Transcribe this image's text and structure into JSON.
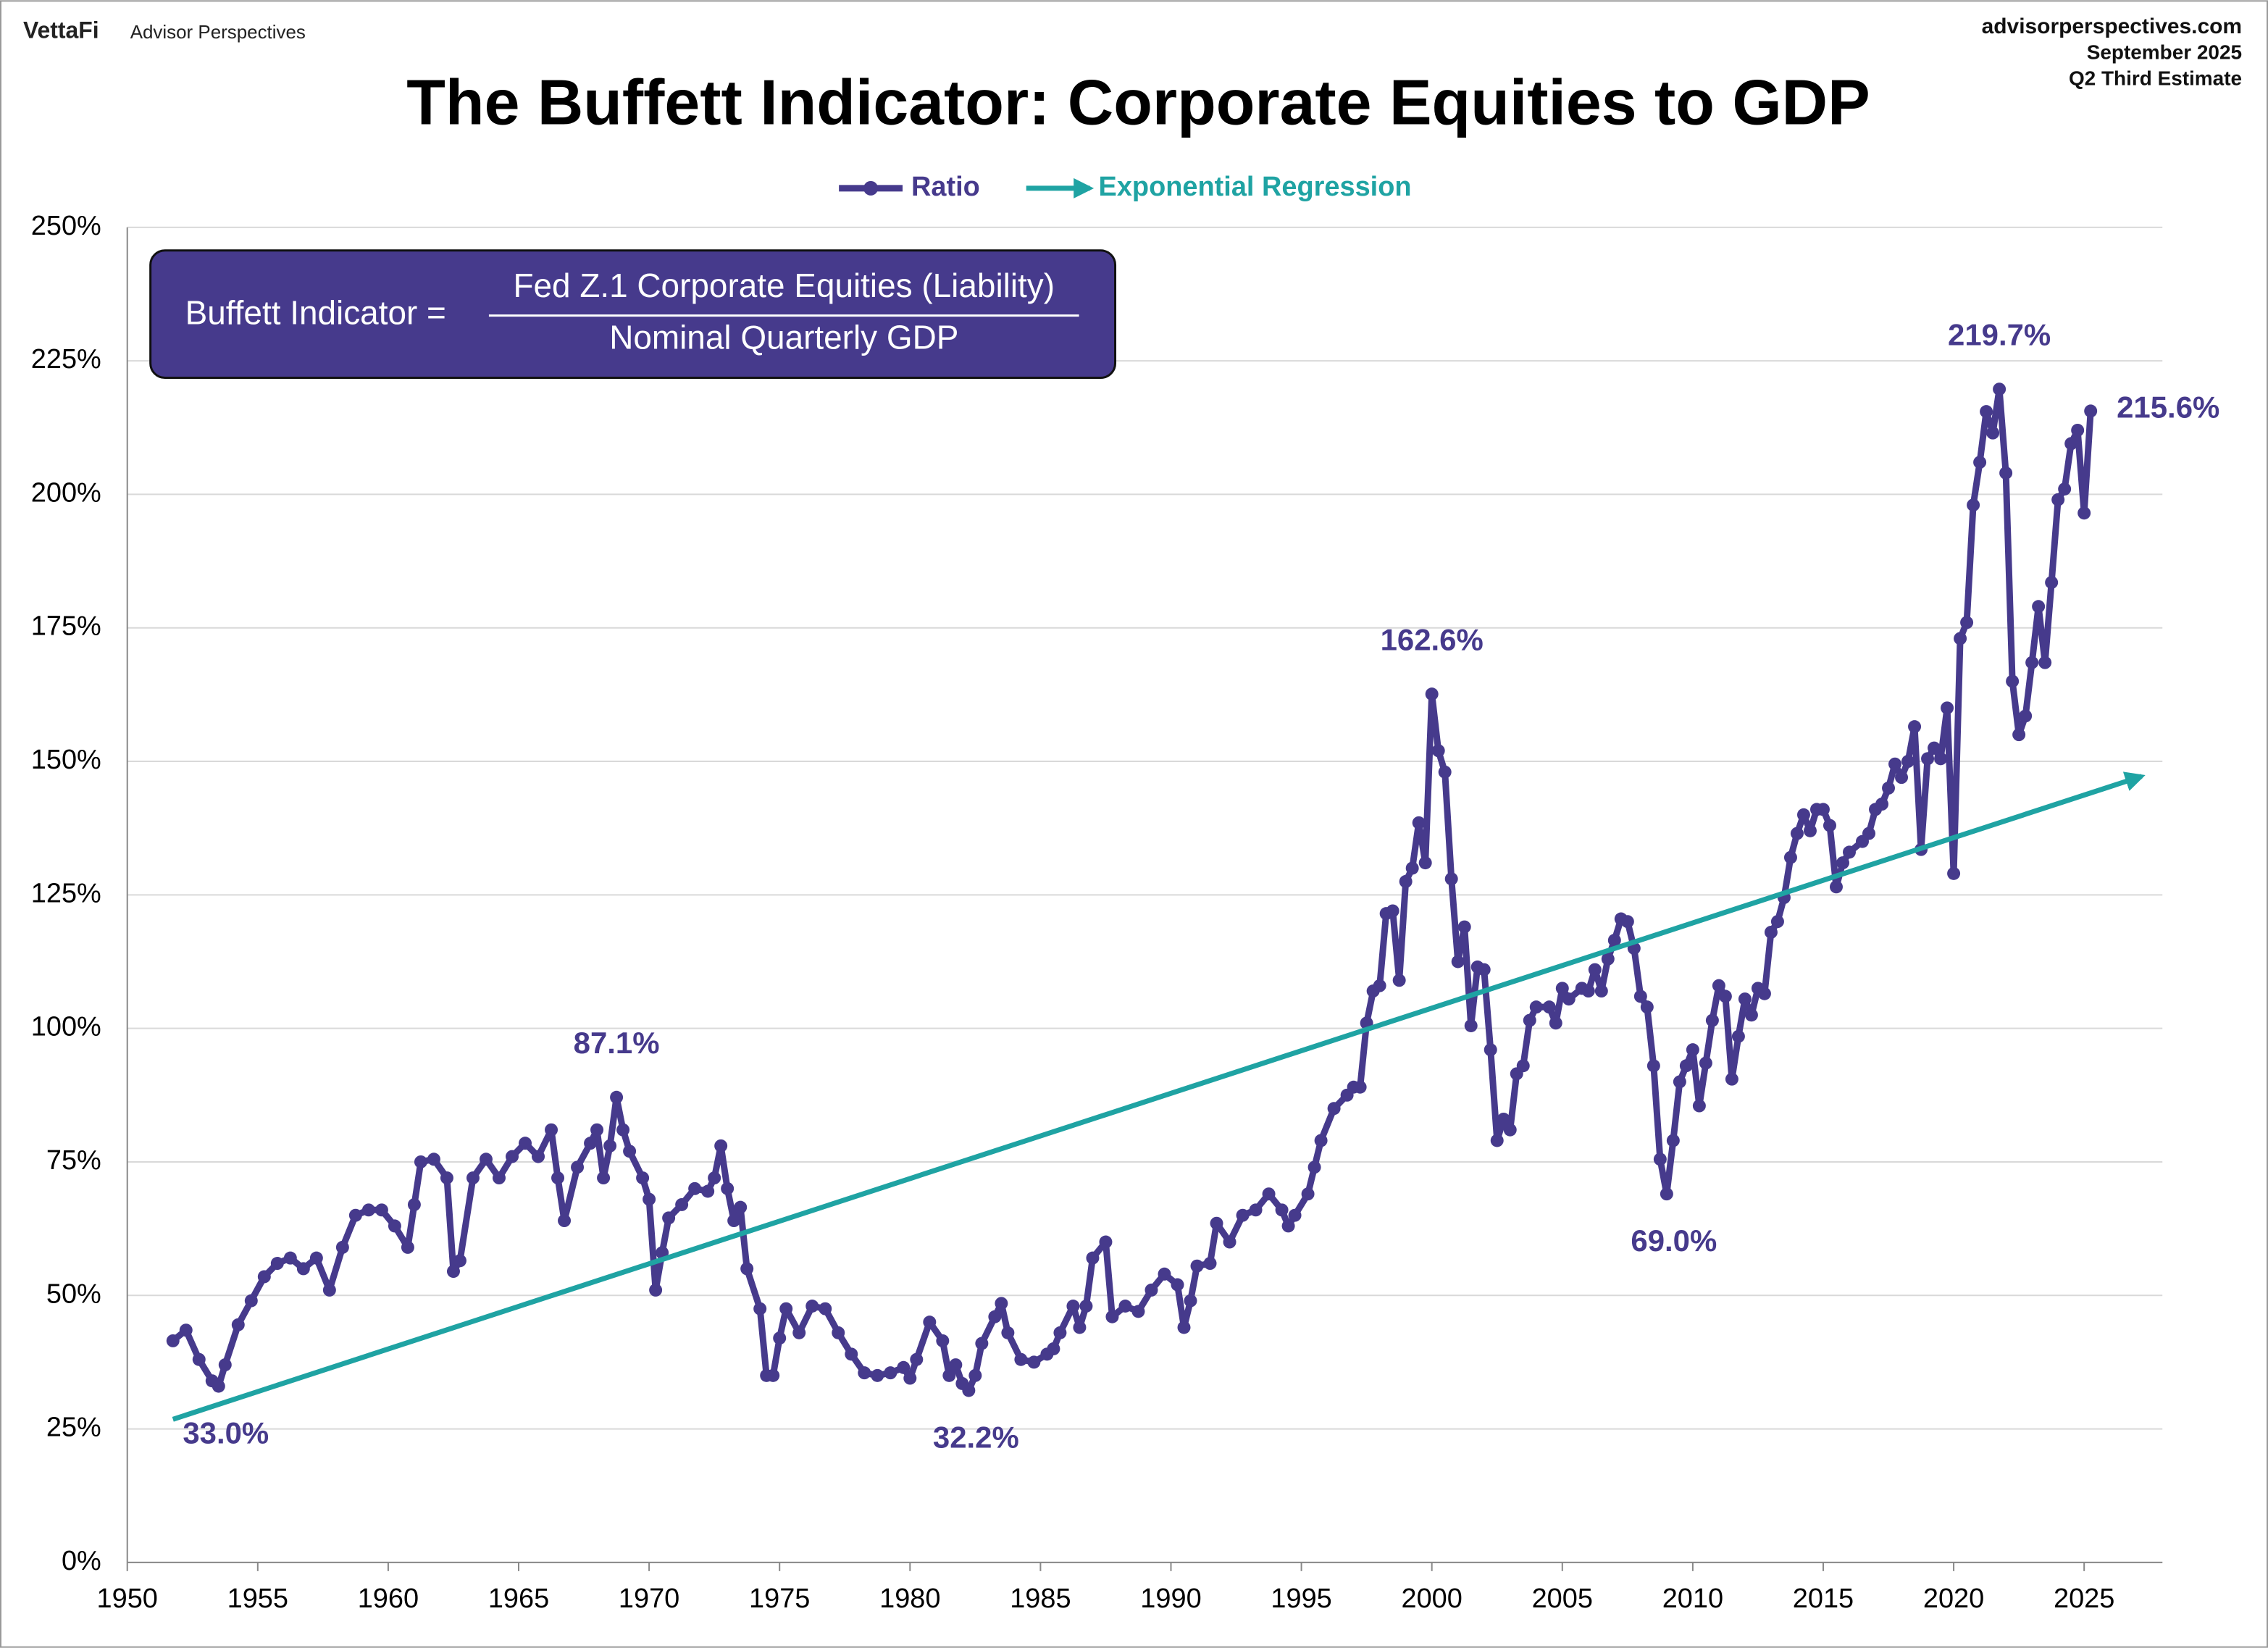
{
  "header": {
    "brand": "VettaFi",
    "brand_sub": "Advisor Perspectives",
    "site": "advisorperspectives.com",
    "date": "September 2025",
    "estimate": "Q2 Third Estimate"
  },
  "formula": {
    "lhs": "Buffett Indicator =",
    "numerator": "Fed Z.1 Corporate Equities (Liability)",
    "denominator": "Nominal Quarterly GDP"
  },
  "chart_data": {
    "type": "line",
    "title": "The Buffett Indicator: Corporate Equities to GDP",
    "xlim": [
      1950,
      2028
    ],
    "xticks": [
      1950,
      1955,
      1960,
      1965,
      1970,
      1975,
      1980,
      1985,
      1990,
      1995,
      2000,
      2005,
      2010,
      2015,
      2020,
      2025
    ],
    "ylim": [
      0,
      250
    ],
    "yticks": [
      {
        "value": 0,
        "label": "0%"
      },
      {
        "value": 25,
        "label": "25%"
      },
      {
        "value": 50,
        "label": "50%"
      },
      {
        "value": 75,
        "label": "75%"
      },
      {
        "value": 100,
        "label": "100%"
      },
      {
        "value": 125,
        "label": "125%"
      },
      {
        "value": 150,
        "label": "150%"
      },
      {
        "value": 175,
        "label": "175%"
      },
      {
        "value": 200,
        "label": "200%"
      },
      {
        "value": 225,
        "label": "225%"
      },
      {
        "value": 250,
        "label": "250%"
      }
    ],
    "grid": true,
    "legend": "top",
    "series": [
      {
        "name": "Ratio",
        "color": "#463a8c",
        "markers": true,
        "x": [
          1951.75,
          1952.25,
          1952.75,
          1953.25,
          1953.5,
          1953.75,
          1954.25,
          1954.75,
          1955.25,
          1955.75,
          1956.25,
          1956.75,
          1957.25,
          1957.75,
          1958.25,
          1958.75,
          1959.25,
          1959.75,
          1960.25,
          1960.75,
          1961.0,
          1961.25,
          1961.75,
          1962.25,
          1962.5,
          1962.75,
          1963.25,
          1963.75,
          1964.25,
          1964.75,
          1965.25,
          1965.75,
          1966.25,
          1966.5,
          1966.75,
          1967.25,
          1967.75,
          1968.0,
          1968.25,
          1968.5,
          1968.75,
          1969.0,
          1969.25,
          1969.75,
          1970.0,
          1970.25,
          1970.5,
          1970.75,
          1971.25,
          1971.75,
          1972.25,
          1972.5,
          1972.75,
          1973.0,
          1973.25,
          1973.5,
          1973.75,
          1974.25,
          1974.5,
          1974.75,
          1975.0,
          1975.25,
          1975.75,
          1976.25,
          1976.75,
          1977.25,
          1977.75,
          1978.25,
          1978.75,
          1979.25,
          1979.75,
          1980.0,
          1980.25,
          1980.75,
          1981.25,
          1981.5,
          1981.75,
          1982.0,
          1982.25,
          1982.5,
          1982.75,
          1983.25,
          1983.5,
          1983.75,
          1984.25,
          1984.75,
          1985.25,
          1985.5,
          1985.75,
          1986.25,
          1986.5,
          1986.75,
          1987.0,
          1987.5,
          1987.75,
          1988.25,
          1988.75,
          1989.25,
          1989.75,
          1990.25,
          1990.5,
          1990.75,
          1991.0,
          1991.5,
          1991.75,
          1992.25,
          1992.75,
          1993.25,
          1993.75,
          1994.25,
          1994.5,
          1994.75,
          1995.25,
          1995.5,
          1995.75,
          1996.25,
          1996.75,
          1997.0,
          1997.25,
          1997.5,
          1997.75,
          1998.0,
          1998.25,
          1998.5,
          1998.75,
          1999.0,
          1999.25,
          1999.5,
          1999.75,
          2000.0,
          2000.25,
          2000.5,
          2000.75,
          2001.0,
          2001.25,
          2001.5,
          2001.75,
          2002.0,
          2002.25,
          2002.5,
          2002.75,
          2003.0,
          2003.25,
          2003.5,
          2003.75,
          2004.0,
          2004.5,
          2004.75,
          2005.0,
          2005.25,
          2005.75,
          2006.0,
          2006.25,
          2006.5,
          2006.75,
          2007.0,
          2007.25,
          2007.5,
          2007.75,
          2008.0,
          2008.25,
          2008.5,
          2008.75,
          2009.0,
          2009.25,
          2009.5,
          2009.75,
          2010.0,
          2010.25,
          2010.5,
          2010.75,
          2011.0,
          2011.25,
          2011.5,
          2011.75,
          2012.0,
          2012.25,
          2012.5,
          2012.75,
          2013.0,
          2013.25,
          2013.5,
          2013.75,
          2014.0,
          2014.25,
          2014.5,
          2014.75,
          2015.0,
          2015.25,
          2015.5,
          2015.75,
          2016.0,
          2016.5,
          2016.75,
          2017.0,
          2017.25,
          2017.5,
          2017.75,
          2018.0,
          2018.25,
          2018.5,
          2018.75,
          2019.0,
          2019.25,
          2019.5,
          2019.75,
          2020.0,
          2020.25,
          2020.5,
          2020.75,
          2021.0,
          2021.25,
          2021.5,
          2021.75,
          2022.0,
          2022.25,
          2022.5,
          2022.75,
          2023.0,
          2023.25,
          2023.5,
          2023.75,
          2024.0,
          2024.25,
          2024.5,
          2024.75,
          2025.0,
          2025.25
        ],
        "values": [
          41.5,
          43.5,
          38,
          34,
          33.0,
          37,
          44.5,
          49,
          53.5,
          56,
          57,
          55,
          57,
          51,
          59,
          65,
          66,
          66,
          63,
          59,
          67,
          75,
          75.5,
          72,
          54.5,
          56.5,
          72,
          75.5,
          72,
          76,
          78.5,
          76,
          81,
          72,
          64,
          74,
          78.5,
          81,
          72,
          78,
          87.1,
          81,
          77,
          72,
          68,
          51,
          58,
          64.5,
          67,
          70,
          69.5,
          72,
          78,
          70,
          64,
          66.5,
          55,
          47.5,
          35,
          35,
          42,
          47.5,
          43,
          48,
          47.5,
          43,
          39,
          35.5,
          35,
          35.5,
          36.5,
          34.5,
          38,
          45,
          41.5,
          35,
          37,
          33.5,
          32.2,
          35,
          41,
          46,
          48.5,
          43,
          38,
          37.5,
          39,
          40,
          43,
          48,
          44,
          48,
          57,
          60,
          46,
          48,
          47,
          51,
          54,
          52,
          44,
          49,
          55.5,
          56,
          63.5,
          60,
          65,
          66,
          69,
          66,
          63,
          65,
          69,
          74,
          79,
          85,
          87.5,
          89,
          89,
          101,
          107,
          108,
          121.5,
          122,
          109,
          127.5,
          130,
          138.5,
          131,
          162.6,
          152,
          148,
          128,
          112.5,
          119,
          100.5,
          111.5,
          111,
          96,
          79,
          83,
          81,
          91.5,
          93,
          101.5,
          104,
          104,
          101,
          107.5,
          105.5,
          107.5,
          107,
          111,
          107,
          113,
          116.5,
          120.5,
          120,
          115,
          106,
          104,
          93,
          75.5,
          69.0,
          79,
          90,
          93,
          96,
          85.5,
          93.5,
          101.5,
          108,
          106,
          90.5,
          98.5,
          105.5,
          102.5,
          107.5,
          106.5,
          118,
          120,
          124.5,
          132,
          136.5,
          140,
          137,
          141,
          141,
          138,
          126.5,
          131,
          133,
          135,
          136.5,
          141,
          142,
          145,
          149.5,
          147,
          150,
          156.5,
          133.5,
          150.5,
          152.5,
          150.5,
          160,
          129,
          173,
          176,
          198,
          206,
          215.5,
          211.5,
          219.7,
          204,
          165,
          155,
          158.5,
          168.5,
          179,
          168.5,
          183.5,
          199,
          201,
          209.5,
          212,
          196.5,
          215.6
        ]
      },
      {
        "name": "Exponential Regression",
        "color": "#1fa3a3",
        "markers": false,
        "arrow": true,
        "x": [
          1951.75,
          2027.2
        ],
        "values": [
          26.8,
          147.2
        ]
      }
    ],
    "annotations": [
      {
        "label": "33.0%",
        "x": 1953.5,
        "y": 33.0,
        "position": "below"
      },
      {
        "label": "87.1%",
        "x": 1968.75,
        "y": 87.1,
        "position": "above"
      },
      {
        "label": "32.2%",
        "x": 1982.25,
        "y": 32.2,
        "position": "below"
      },
      {
        "label": "162.6%",
        "x": 2000.0,
        "y": 162.6,
        "position": "above"
      },
      {
        "label": "69.0%",
        "x": 2009.0,
        "y": 69.0,
        "position": "below"
      },
      {
        "label": "219.7%",
        "x": 2021.75,
        "y": 219.7,
        "position": "above"
      },
      {
        "label": "215.6%",
        "x": 2025.25,
        "y": 215.6,
        "position": "right"
      }
    ]
  }
}
